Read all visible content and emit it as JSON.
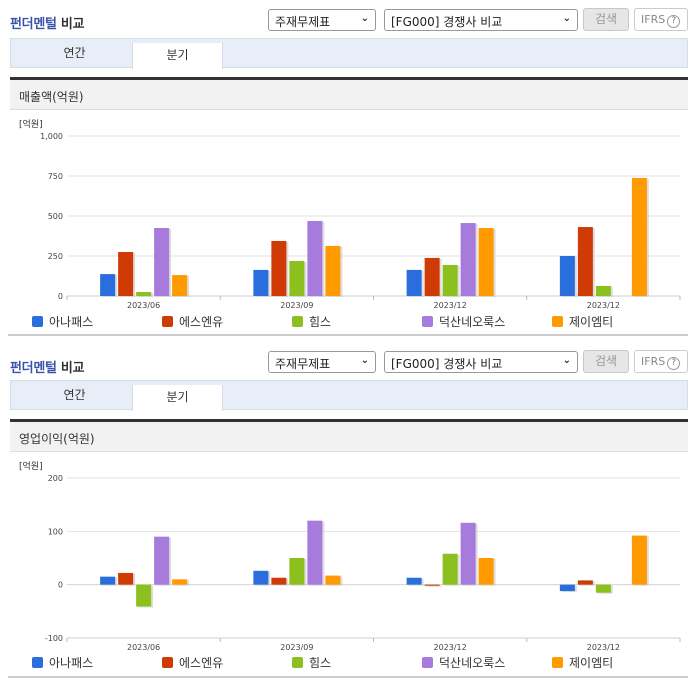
{
  "panels": [
    {
      "title_part1": "펀더멘털",
      "title_part2": " 비교",
      "select_statement": "주재무제표",
      "select_group": "[FG000] 경쟁사 비교",
      "search_button": "검색",
      "ifrs_button": "IFRS",
      "help_icon": "?",
      "tabs": [
        {
          "label": "연간",
          "active": false
        },
        {
          "label": "분기",
          "active": true
        }
      ],
      "metric_title": "매출액(억원)",
      "unit_label": "[억원]"
    },
    {
      "title_part1": "펀더멘털",
      "title_part2": " 비교",
      "select_statement": "주재무제표",
      "select_group": "[FG000] 경쟁사 비교",
      "search_button": "검색",
      "ifrs_button": "IFRS",
      "help_icon": "?",
      "tabs": [
        {
          "label": "연간",
          "active": false
        },
        {
          "label": "분기",
          "active": true
        }
      ],
      "metric_title": "영업이익(억원)",
      "unit_label": "[억원]"
    }
  ],
  "legend": [
    {
      "name": "아나패스",
      "color": "#2a6ede"
    },
    {
      "name": "에스엔유",
      "color": "#d03a05"
    },
    {
      "name": "힘스",
      "color": "#8cc01e"
    },
    {
      "name": "덕산네오룩스",
      "color": "#a77bdb"
    },
    {
      "name": "제이엠티",
      "color": "#ff9b00"
    }
  ],
  "chart_data": [
    {
      "type": "bar",
      "title": "매출액(억원)",
      "ylabel": "[억원]",
      "xlabel": "",
      "categories": [
        "2023/06",
        "2023/09",
        "2023/12",
        "2023/12"
      ],
      "yticks": [
        0,
        250,
        500,
        750,
        1000
      ],
      "ytick_labels": [
        "0",
        "250",
        "500",
        "750",
        "1,000"
      ],
      "ylim": [
        0,
        1000
      ],
      "grid": true,
      "legend_position": "bottom",
      "series": [
        {
          "name": "아나패스",
          "values": [
            137,
            163,
            163,
            250
          ]
        },
        {
          "name": "에스엔유",
          "values": [
            275,
            344,
            238,
            431
          ]
        },
        {
          "name": "힘스",
          "values": [
            25,
            219,
            194,
            63
          ]
        },
        {
          "name": "덕산네오룩스",
          "values": [
            425,
            469,
            456,
            null
          ]
        },
        {
          "name": "제이엠티",
          "values": [
            131,
            313,
            425,
            738
          ]
        }
      ]
    },
    {
      "type": "bar",
      "title": "영업이익(억원)",
      "ylabel": "[억원]",
      "xlabel": "",
      "categories": [
        "2023/06",
        "2023/09",
        "2023/12",
        "2023/12"
      ],
      "yticks": [
        -100,
        0,
        100,
        200
      ],
      "ytick_labels": [
        "-100",
        "0",
        "100",
        "200"
      ],
      "ylim": [
        -100,
        200
      ],
      "grid": true,
      "legend_position": "bottom",
      "series": [
        {
          "name": "아나패스",
          "values": [
            15,
            26,
            13,
            -12
          ]
        },
        {
          "name": "에스엔유",
          "values": [
            22,
            13,
            -2,
            8
          ]
        },
        {
          "name": "힘스",
          "values": [
            -41,
            50,
            58,
            -15
          ]
        },
        {
          "name": "덕산네오룩스",
          "values": [
            90,
            120,
            116,
            null
          ]
        },
        {
          "name": "제이엠티",
          "values": [
            10,
            17,
            50,
            92
          ]
        }
      ]
    }
  ]
}
